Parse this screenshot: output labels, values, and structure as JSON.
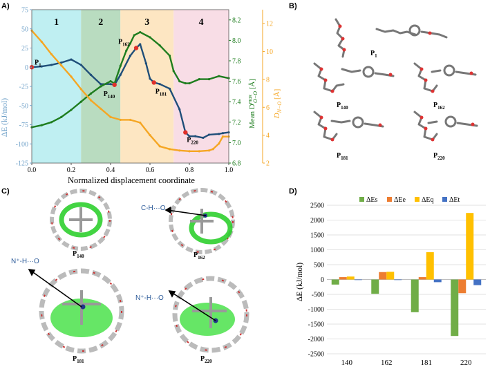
{
  "panel_labels": {
    "a": "A)",
    "b": "B)",
    "c": "C)",
    "d": "D)"
  },
  "colors": {
    "blue": "#1f4e79",
    "green": "#1e7d1e",
    "orange": "#f5a623",
    "es": "#70ad47",
    "ee": "#ed7d31",
    "eq": "#ffc000",
    "et": "#4472c4"
  },
  "chart_data": [
    {
      "id": "A",
      "type": "line",
      "xlabel": "Normalized displacement coordinate",
      "ylabel_left": "ΔE (kJ/mol)",
      "ylabel_mid": "Mean D_{O-O}^{max} [Å]",
      "ylabel_right": "D_{N-O} [Å]",
      "xlim": [
        0,
        1
      ],
      "ylim_left": [
        -125,
        75
      ],
      "ylim_mid": [
        6.8,
        8.3
      ],
      "ylim_right": [
        2,
        13
      ],
      "x_ticks": [
        "0.0",
        "0.2",
        "0.4",
        "0.6",
        "0.8",
        "1.0"
      ],
      "y_ticks_left": [
        "75",
        "50",
        "25",
        "0",
        "-25",
        "-50",
        "-75",
        "-100",
        "-125"
      ],
      "y_ticks_mid": [
        "8.2",
        "8.0",
        "7.8",
        "7.6",
        "7.4",
        "7.2",
        "7.0",
        "6.8"
      ],
      "y_ticks_right": [
        "12",
        "10",
        "8",
        "6",
        "4",
        "2"
      ],
      "regions": [
        {
          "label": "1",
          "x0": 0.0,
          "x1": 0.25,
          "color": "#bfeff2"
        },
        {
          "label": "2",
          "x0": 0.25,
          "x1": 0.45,
          "color": "#b9dcc0"
        },
        {
          "label": "3",
          "x0": 0.45,
          "x1": 0.72,
          "color": "#fde6c2"
        },
        {
          "label": "4",
          "x0": 0.72,
          "x1": 1.0,
          "color": "#f8dde6"
        }
      ],
      "series": [
        {
          "name": "ΔE",
          "axis": "left",
          "color": "#1f4e79",
          "x": [
            0,
            0.05,
            0.1,
            0.15,
            0.2,
            0.25,
            0.3,
            0.35,
            0.4,
            0.42,
            0.45,
            0.5,
            0.53,
            0.55,
            0.58,
            0.6,
            0.62,
            0.65,
            0.7,
            0.75,
            0.78,
            0.8,
            0.83,
            0.87,
            0.9,
            0.95,
            0.97,
            1.0
          ],
          "y": [
            0,
            1,
            3,
            6,
            10,
            3,
            -10,
            -22,
            -22,
            -23,
            -10,
            15,
            25,
            30,
            5,
            -15,
            -20,
            -22,
            -28,
            -55,
            -85,
            -90,
            -90,
            -92,
            -88,
            -87,
            -86,
            -85
          ]
        },
        {
          "name": "Mean D O-O max",
          "axis": "mid",
          "color": "#1e7d1e",
          "x": [
            0,
            0.05,
            0.1,
            0.15,
            0.2,
            0.25,
            0.3,
            0.35,
            0.4,
            0.42,
            0.45,
            0.48,
            0.5,
            0.52,
            0.55,
            0.6,
            0.65,
            0.7,
            0.72,
            0.75,
            0.78,
            0.8,
            0.85,
            0.9,
            0.95,
            1.0
          ],
          "y": [
            7.15,
            7.17,
            7.2,
            7.25,
            7.32,
            7.4,
            7.48,
            7.55,
            7.6,
            7.58,
            7.75,
            7.9,
            7.97,
            8.05,
            8.08,
            8.03,
            7.95,
            7.85,
            7.7,
            7.6,
            7.58,
            7.58,
            7.62,
            7.62,
            7.65,
            7.63
          ]
        },
        {
          "name": "D N-O",
          "axis": "right",
          "color": "#f5a623",
          "x": [
            0,
            0.05,
            0.1,
            0.15,
            0.2,
            0.25,
            0.3,
            0.35,
            0.4,
            0.45,
            0.5,
            0.55,
            0.6,
            0.65,
            0.7,
            0.75,
            0.8,
            0.85,
            0.9,
            0.92,
            0.95,
            0.97,
            1.0
          ],
          "y": [
            11.5,
            10.7,
            9.8,
            9.0,
            8.2,
            7.3,
            6.5,
            5.9,
            5.3,
            5.1,
            5.1,
            4.9,
            4.0,
            3.2,
            3.0,
            2.9,
            2.85,
            2.85,
            2.9,
            3.0,
            3.4,
            3.9,
            3.9
          ]
        }
      ],
      "markers": [
        {
          "label": "P",
          "sub": "1",
          "x": 0.0,
          "y": 0
        },
        {
          "label": "P",
          "sub": "140",
          "x": 0.42,
          "y": -23
        },
        {
          "label": "P",
          "sub": "162",
          "x": 0.53,
          "y": 25
        },
        {
          "label": "P",
          "sub": "181",
          "x": 0.62,
          "y": -20
        },
        {
          "label": "P",
          "sub": "220",
          "x": 0.78,
          "y": -85
        }
      ]
    },
    {
      "id": "D",
      "type": "bar",
      "ylabel": "ΔE (kJ/mol)",
      "ylim": [
        -2500,
        2500
      ],
      "y_ticks": [
        "2500",
        "2000",
        "1500",
        "1000",
        "500",
        "0",
        "-500",
        "-1000",
        "-1500",
        "-2000",
        "-2500"
      ],
      "categories": [
        "140",
        "162",
        "181",
        "220"
      ],
      "series": [
        {
          "name": "ΔEs",
          "color": "#70ad47",
          "values": [
            -170,
            -480,
            -1100,
            -1900
          ]
        },
        {
          "name": "ΔEe",
          "color": "#ed7d31",
          "values": [
            80,
            250,
            80,
            -460
          ]
        },
        {
          "name": "ΔEq",
          "color": "#ffc000",
          "values": [
            100,
            260,
            920,
            2240
          ]
        },
        {
          "name": "ΔEt",
          "color": "#4472c4",
          "values": [
            -10,
            -10,
            -90,
            -190
          ]
        }
      ]
    }
  ],
  "panel_b": {
    "labels": [
      {
        "text": "P",
        "sub": "1"
      },
      {
        "text": "P",
        "sub": "140"
      },
      {
        "text": "P",
        "sub": "162"
      },
      {
        "text": "P",
        "sub": "181"
      },
      {
        "text": "P",
        "sub": "220"
      }
    ]
  },
  "panel_c": {
    "labels": [
      {
        "text": "P",
        "sub": "140"
      },
      {
        "text": "P",
        "sub": "162"
      },
      {
        "text": "P",
        "sub": "181"
      },
      {
        "text": "P",
        "sub": "220"
      }
    ],
    "annotations": [
      "C-H···O",
      "N⁺-H···O",
      "N⁺-H···O"
    ]
  }
}
